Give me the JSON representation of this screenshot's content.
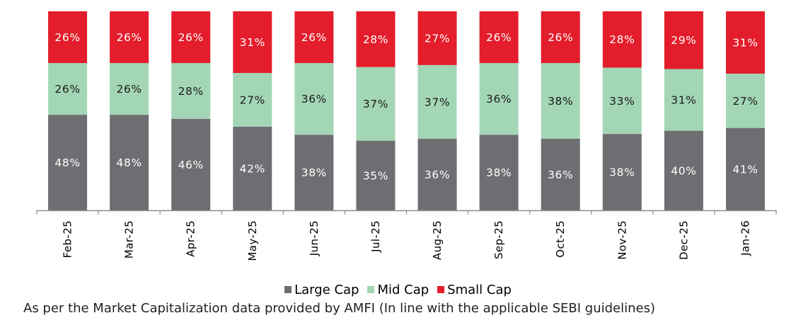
{
  "chart_data": {
    "type": "bar",
    "stacked": true,
    "categories": [
      "Feb-25",
      "Mar-25",
      "Apr-25",
      "May-25",
      "Jun-25",
      "Jul-25",
      "Aug-25",
      "Sep-25",
      "Oct-25",
      "Nov-25",
      "Dec-25",
      "Jan-26"
    ],
    "series": [
      {
        "name": "Large Cap",
        "color": "#6d6e71",
        "label_color": "#ffffff",
        "values": [
          48,
          48,
          46,
          42,
          38,
          35,
          36,
          38,
          36,
          38,
          40,
          41
        ]
      },
      {
        "name": "Mid Cap",
        "color": "#a3d6b5",
        "label_color": "#1a1a1a",
        "values": [
          26,
          26,
          28,
          27,
          36,
          37,
          37,
          36,
          38,
          33,
          31,
          27
        ]
      },
      {
        "name": "Small Cap",
        "color": "#e31d2b",
        "label_color": "#ffffff",
        "values": [
          26,
          26,
          26,
          31,
          26,
          28,
          27,
          26,
          26,
          28,
          29,
          31
        ]
      }
    ],
    "value_suffix": "%",
    "title": "",
    "xlabel": "",
    "ylabel": "",
    "ylim": [
      0,
      100
    ],
    "legend_position": "bottom-center",
    "grid": false
  },
  "legend": {
    "items": [
      {
        "label": "Large Cap",
        "color": "#6d6e71"
      },
      {
        "label": "Mid Cap",
        "color": "#a3d6b5"
      },
      {
        "label": "Small Cap",
        "color": "#e31d2b"
      }
    ]
  },
  "footnote": "As per the Market Capitalization data provided by AMFI (In line with the applicable SEBI guidelines)"
}
